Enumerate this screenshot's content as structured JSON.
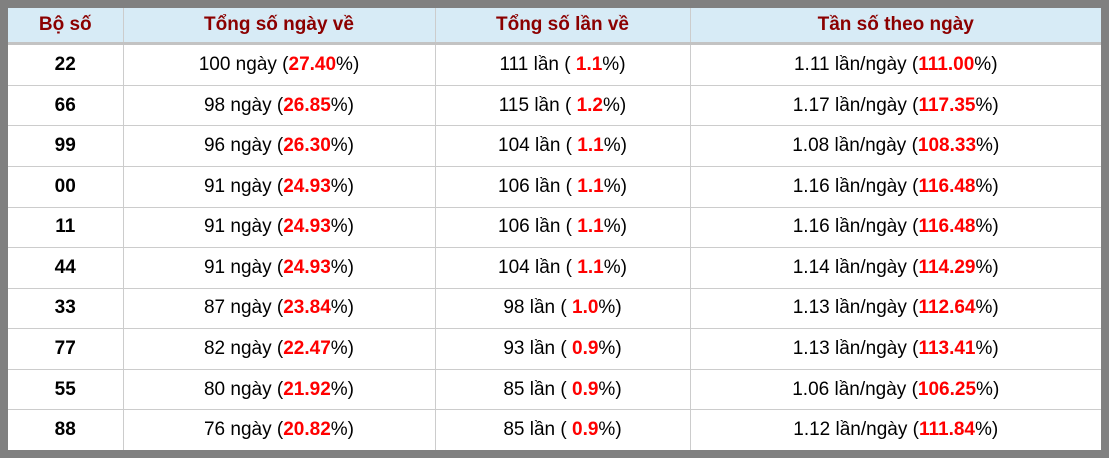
{
  "colors": {
    "accent_red": "#ff0000",
    "header_text": "#8b0000",
    "header_bg": "#d7ebf6",
    "frame_border": "#808080",
    "grid_line": "#cccccc"
  },
  "table": {
    "headers": [
      "Bộ số",
      "Tổng số ngày về",
      "Tổng số lần về",
      "Tần số theo ngày"
    ],
    "rows": [
      {
        "pair": "22",
        "cells": [
          {
            "pre": "100 ngày (",
            "red": "27.40",
            "post": "%)"
          },
          {
            "pre": "111 lần ( ",
            "red": "1.1",
            "post": "%)"
          },
          {
            "pre": "1.11 lần/ngày (",
            "red": "111.00",
            "post": "%)"
          }
        ]
      },
      {
        "pair": "66",
        "cells": [
          {
            "pre": "98 ngày (",
            "red": "26.85",
            "post": "%)"
          },
          {
            "pre": "115 lần ( ",
            "red": "1.2",
            "post": "%)"
          },
          {
            "pre": "1.17 lần/ngày (",
            "red": "117.35",
            "post": "%)"
          }
        ]
      },
      {
        "pair": "99",
        "cells": [
          {
            "pre": "96 ngày (",
            "red": "26.30",
            "post": "%)"
          },
          {
            "pre": "104 lần ( ",
            "red": "1.1",
            "post": "%)"
          },
          {
            "pre": "1.08 lần/ngày (",
            "red": "108.33",
            "post": "%)"
          }
        ]
      },
      {
        "pair": "00",
        "cells": [
          {
            "pre": "91 ngày (",
            "red": "24.93",
            "post": "%)"
          },
          {
            "pre": "106 lần ( ",
            "red": "1.1",
            "post": "%)"
          },
          {
            "pre": "1.16 lần/ngày (",
            "red": "116.48",
            "post": "%)"
          }
        ]
      },
      {
        "pair": "11",
        "cells": [
          {
            "pre": "91 ngày (",
            "red": "24.93",
            "post": "%)"
          },
          {
            "pre": "106 lần ( ",
            "red": "1.1",
            "post": "%)"
          },
          {
            "pre": "1.16 lần/ngày (",
            "red": "116.48",
            "post": "%)"
          }
        ]
      },
      {
        "pair": "44",
        "cells": [
          {
            "pre": "91 ngày (",
            "red": "24.93",
            "post": "%)"
          },
          {
            "pre": "104 lần ( ",
            "red": "1.1",
            "post": "%)"
          },
          {
            "pre": "1.14 lần/ngày (",
            "red": "114.29",
            "post": "%)"
          }
        ]
      },
      {
        "pair": "33",
        "cells": [
          {
            "pre": "87 ngày (",
            "red": "23.84",
            "post": "%)"
          },
          {
            "pre": "98 lần ( ",
            "red": "1.0",
            "post": "%)"
          },
          {
            "pre": "1.13 lần/ngày (",
            "red": "112.64",
            "post": "%)"
          }
        ]
      },
      {
        "pair": "77",
        "cells": [
          {
            "pre": "82 ngày (",
            "red": "22.47",
            "post": "%)"
          },
          {
            "pre": "93 lần ( ",
            "red": "0.9",
            "post": "%)"
          },
          {
            "pre": "1.13 lần/ngày (",
            "red": "113.41",
            "post": "%)"
          }
        ]
      },
      {
        "pair": "55",
        "cells": [
          {
            "pre": "80 ngày (",
            "red": "21.92",
            "post": "%)"
          },
          {
            "pre": "85 lần ( ",
            "red": "0.9",
            "post": "%)"
          },
          {
            "pre": "1.06 lần/ngày (",
            "red": "106.25",
            "post": "%)"
          }
        ]
      },
      {
        "pair": "88",
        "cells": [
          {
            "pre": "76 ngày (",
            "red": "20.82",
            "post": "%)"
          },
          {
            "pre": "85 lần ( ",
            "red": "0.9",
            "post": "%)"
          },
          {
            "pre": "1.12 lần/ngày (",
            "red": "111.84",
            "post": "%)"
          }
        ]
      }
    ]
  }
}
